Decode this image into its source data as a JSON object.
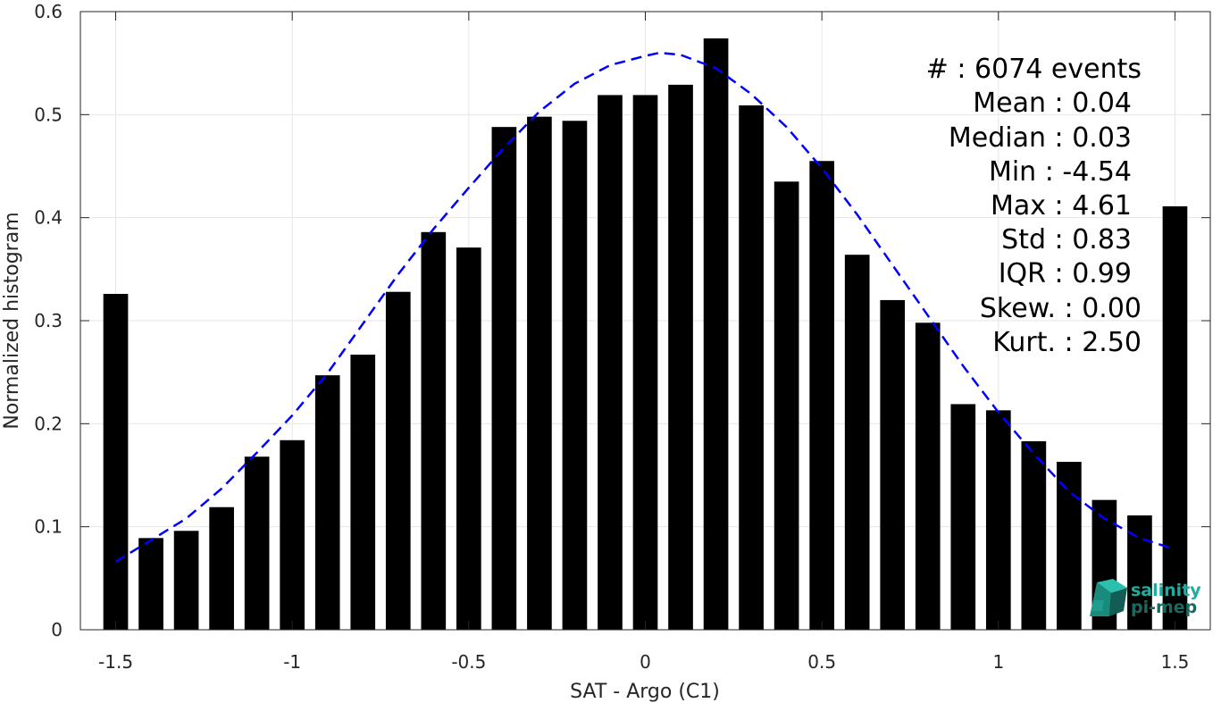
{
  "chart_data": {
    "type": "bar",
    "xlabel": "SAT - Argo (C1)",
    "ylabel": "Normalized histogram",
    "xlim": [
      -1.6,
      1.6
    ],
    "ylim": [
      0,
      0.6
    ],
    "grid": true,
    "x_ticks": [
      -1.5,
      -1,
      -0.5,
      0,
      0.5,
      1,
      1.5
    ],
    "x_tick_labels": [
      "-1.5",
      "-1",
      "-0.5",
      "0",
      "0.5",
      "1",
      "1.5"
    ],
    "y_ticks": [
      0,
      0.1,
      0.2,
      0.3,
      0.4,
      0.5,
      0.6
    ],
    "y_tick_labels": [
      "0",
      "0.1",
      "0.2",
      "0.3",
      "0.4",
      "0.5",
      "0.6"
    ],
    "bar_color": "#000000",
    "bars": {
      "x": [
        -1.5,
        -1.4,
        -1.3,
        -1.2,
        -1.1,
        -1.0,
        -0.9,
        -0.8,
        -0.7,
        -0.6,
        -0.5,
        -0.4,
        -0.3,
        -0.2,
        -0.1,
        0.0,
        0.1,
        0.2,
        0.3,
        0.4,
        0.5,
        0.6,
        0.7,
        0.8,
        0.9,
        1.0,
        1.1,
        1.2,
        1.3,
        1.4,
        1.5
      ],
      "values": [
        0.326,
        0.089,
        0.096,
        0.119,
        0.168,
        0.184,
        0.247,
        0.267,
        0.328,
        0.386,
        0.371,
        0.488,
        0.498,
        0.494,
        0.519,
        0.519,
        0.529,
        0.574,
        0.509,
        0.435,
        0.455,
        0.364,
        0.32,
        0.298,
        0.219,
        0.213,
        0.183,
        0.163,
        0.126,
        0.111,
        0.411
      ]
    },
    "fit_curve": {
      "style": "dashed",
      "color": "#0000ff",
      "x": [
        -1.5,
        -1.4,
        -1.3,
        -1.2,
        -1.1,
        -1.0,
        -0.9,
        -0.8,
        -0.7,
        -0.6,
        -0.5,
        -0.4,
        -0.3,
        -0.2,
        -0.1,
        0.0,
        0.04,
        0.1,
        0.2,
        0.3,
        0.4,
        0.5,
        0.6,
        0.7,
        0.8,
        0.9,
        1.0,
        1.1,
        1.2,
        1.3,
        1.4,
        1.5
      ],
      "y": [
        0.066,
        0.087,
        0.108,
        0.137,
        0.172,
        0.208,
        0.249,
        0.297,
        0.345,
        0.389,
        0.429,
        0.468,
        0.503,
        0.53,
        0.548,
        0.557,
        0.56,
        0.558,
        0.545,
        0.52,
        0.488,
        0.448,
        0.403,
        0.354,
        0.305,
        0.256,
        0.211,
        0.171,
        0.134,
        0.108,
        0.089,
        0.078
      ]
    },
    "legend": "none"
  },
  "stats": [
    "#  : 6074 events",
    "Mean : 0.04",
    "Median : 0.03",
    "Min : -4.54",
    "Max : 4.61",
    "Std : 0.83",
    "IQR : 0.99",
    "Skew. : 0.00",
    "Kurt. : 2.50"
  ],
  "logo": {
    "line1": "salinity",
    "line2": "pi-mep",
    "color1": "#1aae9f",
    "color2": "#1a6b5f"
  }
}
